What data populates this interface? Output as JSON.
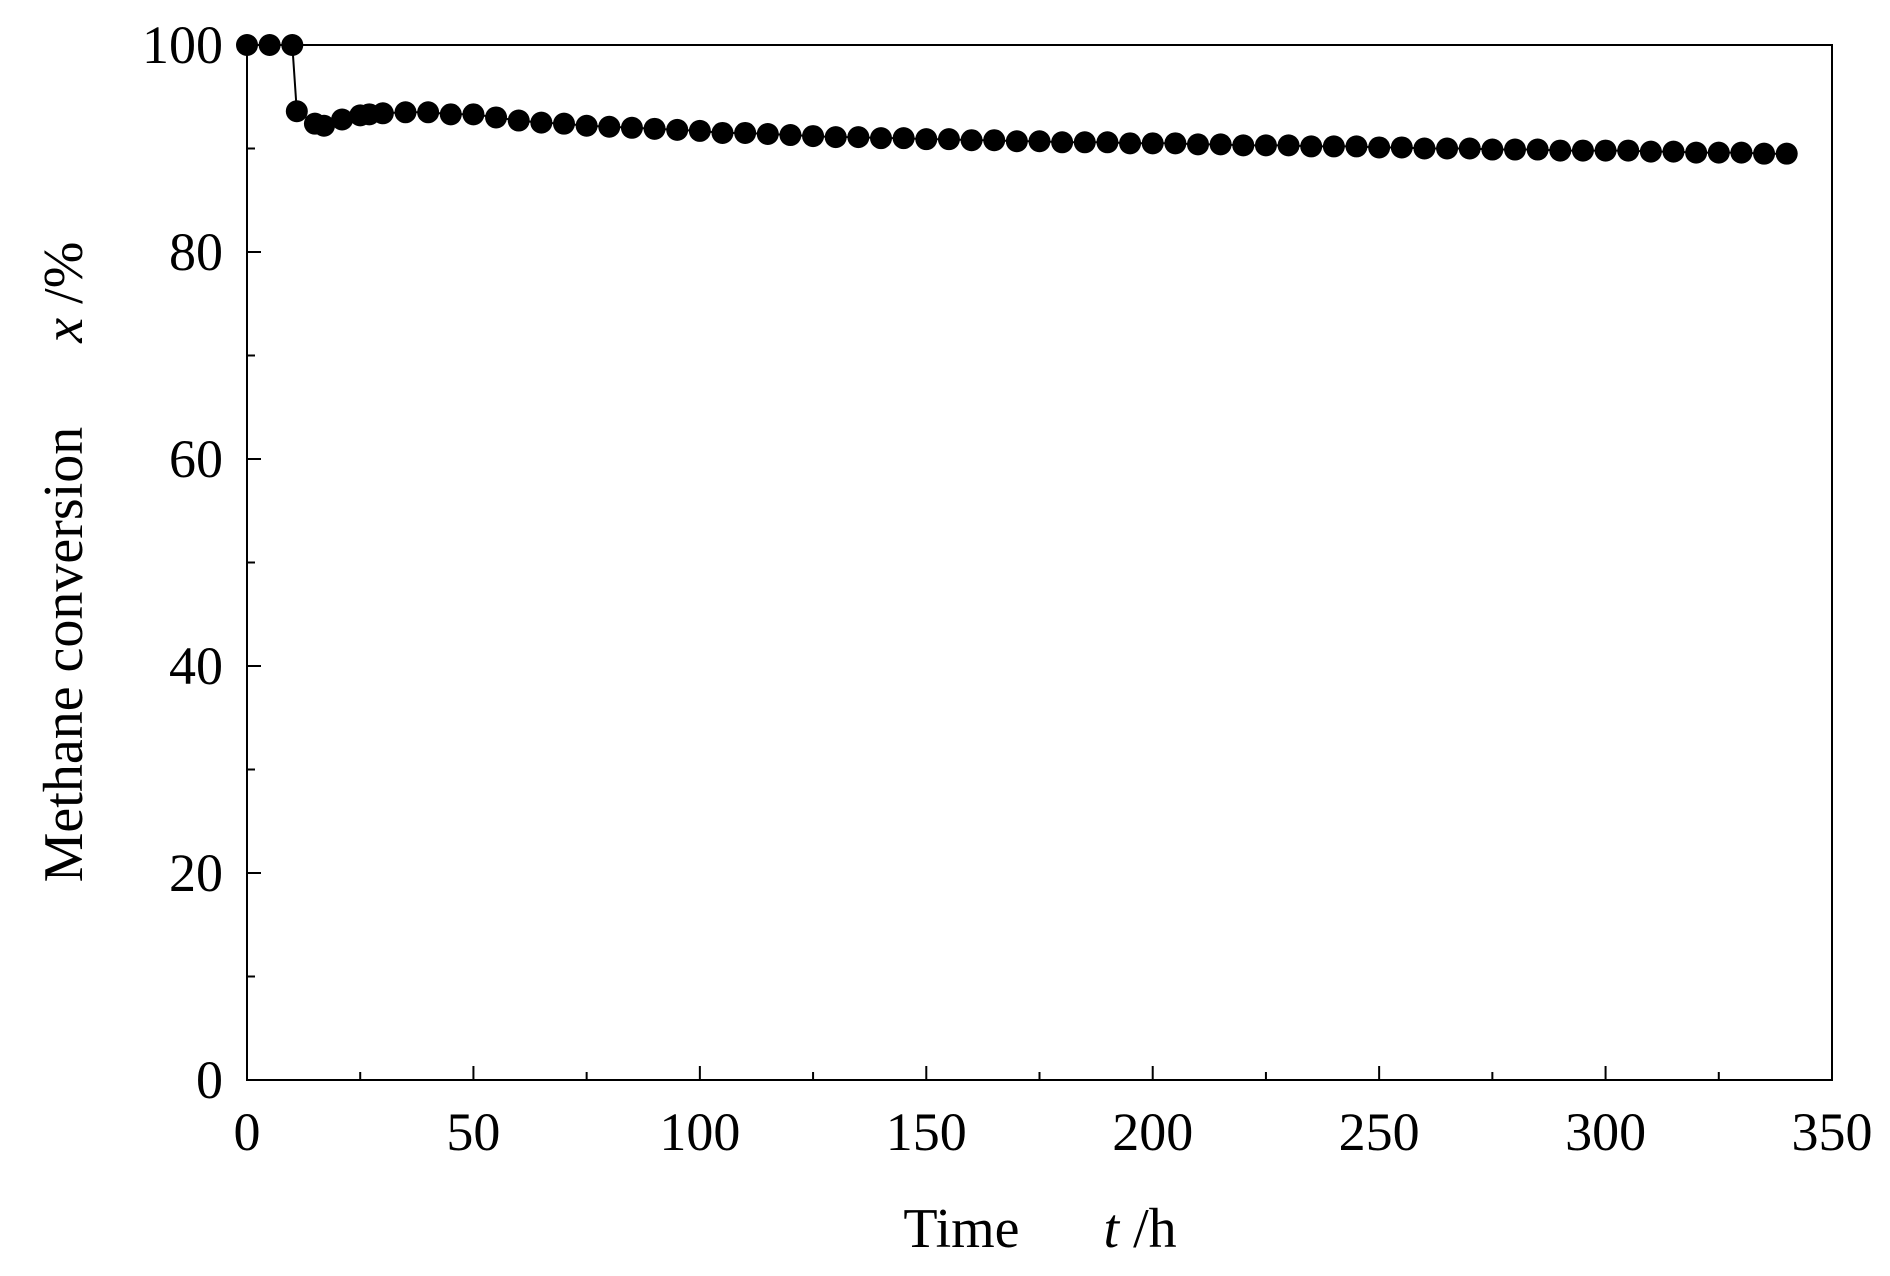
{
  "chart_data": {
    "type": "scatter",
    "title": "",
    "xlabel": {
      "text": "Time",
      "variable": "t",
      "unit": " /h"
    },
    "ylabel": {
      "text": "Methane conversion",
      "variable": "x",
      "unit": " /%"
    },
    "xlim": [
      0,
      350
    ],
    "ylim": [
      0,
      100
    ],
    "x_major_ticks": [
      0,
      50,
      100,
      150,
      200,
      250,
      300,
      350
    ],
    "x_minor_ticks": [
      25,
      75,
      125,
      175,
      225,
      275,
      325
    ],
    "y_major_ticks": [
      0,
      20,
      40,
      60,
      80,
      100
    ],
    "y_minor_ticks": [
      10,
      30,
      50,
      70,
      90
    ],
    "x_tick_labels": [
      "0",
      "50",
      "100",
      "150",
      "200",
      "250",
      "300",
      "350"
    ],
    "y_tick_labels": [
      "0",
      "20",
      "40",
      "60",
      "80",
      "100"
    ],
    "grid": false,
    "legend": "none",
    "marker_color": "#000000",
    "line_color": "#000000",
    "series": [
      {
        "x": [
          0,
          5,
          10,
          11,
          15,
          17,
          21,
          25,
          27,
          30,
          35,
          40,
          45,
          50,
          55,
          60,
          65,
          70,
          75,
          80,
          85,
          90,
          95,
          100,
          105,
          110,
          115,
          120,
          125,
          130,
          135,
          140,
          145,
          150,
          155,
          160,
          165,
          170,
          175,
          180,
          185,
          190,
          195,
          200,
          205,
          210,
          215,
          220,
          225,
          230,
          235,
          240,
          245,
          250,
          255,
          260,
          265,
          270,
          275,
          280,
          285,
          290,
          295,
          300,
          305,
          310,
          315,
          320,
          325,
          330,
          335,
          340
        ],
        "y": [
          100,
          100,
          100,
          93.6,
          92.4,
          92.2,
          92.8,
          93.2,
          93.3,
          93.4,
          93.5,
          93.5,
          93.3,
          93.3,
          93.0,
          92.7,
          92.5,
          92.4,
          92.2,
          92.1,
          92.0,
          91.9,
          91.8,
          91.7,
          91.5,
          91.5,
          91.4,
          91.3,
          91.2,
          91.1,
          91.1,
          91.0,
          91.0,
          90.9,
          90.9,
          90.8,
          90.8,
          90.7,
          90.7,
          90.6,
          90.6,
          90.6,
          90.5,
          90.5,
          90.5,
          90.4,
          90.4,
          90.3,
          90.3,
          90.3,
          90.2,
          90.2,
          90.2,
          90.1,
          90.1,
          90.0,
          90.0,
          90.0,
          89.9,
          89.9,
          89.9,
          89.8,
          89.8,
          89.8,
          89.8,
          89.7,
          89.7,
          89.6,
          89.6,
          89.6,
          89.5,
          89.5
        ]
      }
    ]
  }
}
